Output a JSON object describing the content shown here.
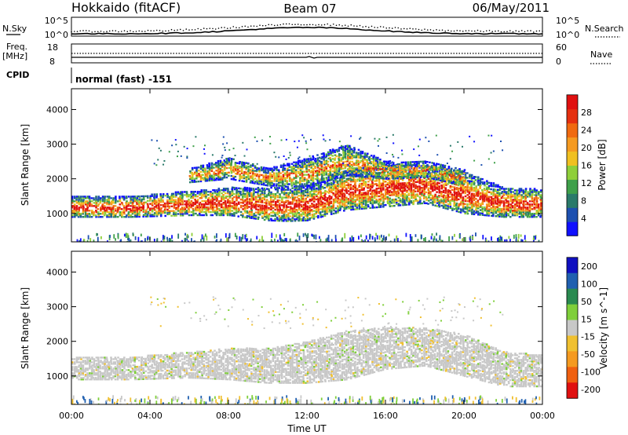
{
  "header": {
    "title": "Hokkaido (fitACF)",
    "beam": "Beam 07",
    "date": "06/May/2011"
  },
  "strips": {
    "nsky": {
      "label": "N.Sky",
      "tick_top": "10^5",
      "tick_bottom": "10^0"
    },
    "nsearch": {
      "label": "N.Search",
      "tick_top": "10^5",
      "tick_bottom": "10^0"
    },
    "freq": {
      "label": "Freq.",
      "unit": "[MHz]",
      "tick_top": "18",
      "tick_bottom": "8"
    },
    "nave": {
      "label": "Nave",
      "tick_top": "60",
      "tick_bottom": "0"
    },
    "cpid": {
      "label": "CPID",
      "value": "normal (fast) -151"
    }
  },
  "chart_data": [
    {
      "type": "heatmap",
      "name": "power",
      "title": "",
      "xlabel": "",
      "ylabel": "Slant Range [km]",
      "x_ticks": [
        "00:00",
        "04:00",
        "08:00",
        "12:00",
        "16:00",
        "20:00",
        "00:00"
      ],
      "xlim_hours": [
        0,
        24
      ],
      "y_ticks": [
        1000,
        2000,
        3000,
        4000
      ],
      "ylim": [
        180,
        4600
      ],
      "colorbar": {
        "label": "Power [dB]",
        "ticks": [
          4,
          8,
          12,
          16,
          20,
          24,
          28
        ],
        "range": [
          0,
          32
        ],
        "colors": [
          "#1010ff",
          "#1d50b0",
          "#2a7a6a",
          "#3fa04a",
          "#8fcf3a",
          "#f0c020",
          "#f59a20",
          "#f06a10",
          "#e53010",
          "#e01010"
        ]
      },
      "features": [
        {
          "name": "main scatter band",
          "x_hours": [
            0,
            3,
            6,
            8,
            10,
            11,
            12,
            13,
            14,
            16,
            18,
            20,
            22,
            24
          ],
          "lower_km": [
            900,
            900,
            950,
            950,
            800,
            780,
            800,
            950,
            1100,
            1200,
            1300,
            1000,
            900,
            900
          ],
          "upper_km": [
            1500,
            1500,
            1650,
            1750,
            1750,
            1800,
            1800,
            2000,
            2300,
            2400,
            2400,
            2200,
            1750,
            1700
          ],
          "peak_power_db": 28
        },
        {
          "name": "upper band",
          "x_hours": [
            6,
            8,
            10,
            12,
            14,
            16,
            18,
            20
          ],
          "lower_km": [
            1900,
            2000,
            1800,
            1800,
            2100,
            2000,
            2050,
            1800
          ],
          "upper_km": [
            2300,
            2600,
            2300,
            2600,
            3000,
            2500,
            2500,
            2300
          ],
          "peak_power_db": 22
        }
      ]
    },
    {
      "type": "heatmap",
      "name": "velocity",
      "title": "",
      "xlabel": "Time UT",
      "ylabel": "Slant Range [km]",
      "x_ticks": [
        "00:00",
        "04:00",
        "08:00",
        "12:00",
        "16:00",
        "20:00",
        "00:00"
      ],
      "xlim_hours": [
        0,
        24
      ],
      "y_ticks": [
        1000,
        2000,
        3000,
        4000
      ],
      "ylim": [
        180,
        4600
      ],
      "colorbar": {
        "label": "Velocity [m s^-1]",
        "ticks": [
          200,
          100,
          50,
          15,
          -15,
          -50,
          -100,
          -200
        ],
        "colors": [
          "#1010c0",
          "#2060b0",
          "#2a8a50",
          "#7fcf3a",
          "#c8c8c8",
          "#f0c030",
          "#f59a20",
          "#f06010",
          "#e01010"
        ]
      },
      "ground_scatter_color": "#c8c8c8",
      "features": [
        {
          "name": "ground scatter band",
          "x_hours": [
            0,
            3,
            6,
            8,
            10,
            12,
            14,
            16,
            18,
            20,
            22,
            24
          ],
          "lower_km": [
            900,
            900,
            950,
            900,
            800,
            800,
            900,
            1200,
            1300,
            1000,
            700,
            700
          ],
          "upper_km": [
            1550,
            1550,
            1700,
            1800,
            1800,
            2000,
            2300,
            2400,
            2400,
            2200,
            1700,
            1600
          ]
        }
      ]
    }
  ]
}
